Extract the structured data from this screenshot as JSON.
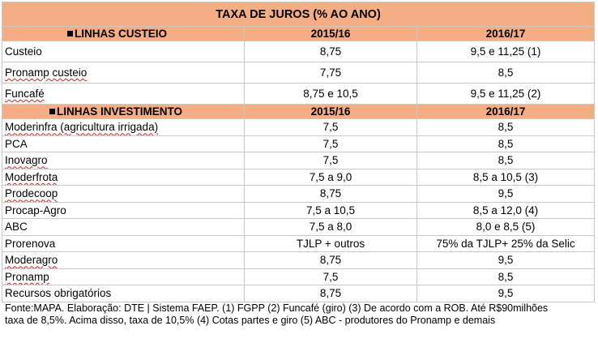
{
  "title": "TAXA DE JUROS (% AO ANO)",
  "sections": [
    {
      "header": "LINHAS CUSTEIO",
      "col1": "2015/16",
      "col2": "2016/17",
      "rows": [
        {
          "name": "Custeio",
          "v1": "8,75",
          "v2": "9,5 e 11,25 (1)"
        },
        {
          "name": "Pronamp custeio",
          "v1": "7,75",
          "v2": "8,5"
        },
        {
          "name": "Funcafé",
          "v1": "8,75 e 10,5",
          "v2": "9,5 e 11,25 (2)"
        }
      ]
    },
    {
      "header": "LINHAS INVESTIMENTO",
      "col1": "2015/16",
      "col2": "2016/17",
      "rows": [
        {
          "name": "Moderinfra (agricultura irrigada)",
          "v1": "7,5",
          "v2": "8,5"
        },
        {
          "name": "PCA",
          "v1": "7,5",
          "v2": "8,5"
        },
        {
          "name": "Inovagro",
          "v1": "7,5",
          "v2": "8,5"
        },
        {
          "name": "Moderfrota",
          "v1": "7,5 a 9,0",
          "v2": "8,5 a 10,5 (3)"
        },
        {
          "name": "Prodecoop",
          "v1": "8,75",
          "v2": "9,5"
        },
        {
          "name": "Procap-Agro",
          "v1": "7,5 a 10,5",
          "v2": "8,5 a 12,0 (4)"
        },
        {
          "name": "ABC",
          "v1": "7,5 a 8,0",
          "v2": "8,0 e 8,5 (5)"
        },
        {
          "name": "Prorenova",
          "v1": "TJLP + outros",
          "v2": "75% da TJLP+ 25% da Selic"
        },
        {
          "name": "Moderagro",
          "v1": "8,75",
          "v2": "9,5"
        },
        {
          "name": "Pronamp",
          "v1": "7,5",
          "v2": "8,5"
        },
        {
          "name": "Recursos obrigatórios",
          "v1": "8,75",
          "v2": "9,5"
        }
      ]
    }
  ],
  "footnote": {
    "line1": "Fonte:MAPA. Elaboração: DTE | Sistema FAEP. (1) FGPP (2) Funcafé (giro) (3) De acordo com a ROB. Até R$90milhões",
    "line2": "taxa de 8,5%. Acima disso, taxa de 10,5% (4) Cotas partes e giro (5) ABC - produtores do Pronamp e demais"
  }
}
